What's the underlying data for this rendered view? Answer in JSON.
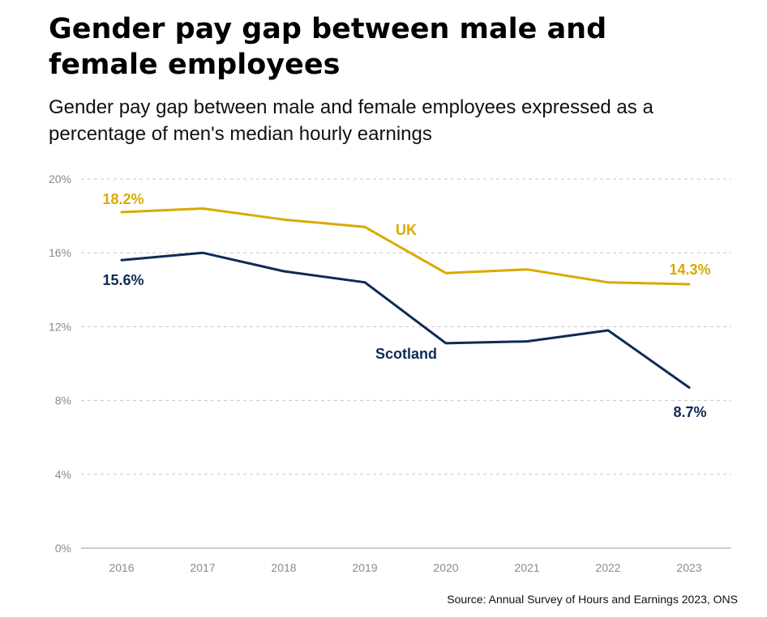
{
  "title": "Gender pay gap between male and female employees",
  "subtitle": "Gender pay gap between male and female employees expressed as a percentage of men's median hourly earnings",
  "source": "Source: Annual Survey of Hours and Earnings 2023, ONS",
  "colors": {
    "uk": "#d9aa00",
    "scotland": "#0d2b54",
    "grid": "#c8c8c8",
    "axis": "#9a9a9a"
  },
  "chart_data": {
    "type": "line",
    "x": [
      "2016",
      "2017",
      "2018",
      "2019",
      "2020",
      "2021",
      "2022",
      "2023"
    ],
    "ylim": [
      0,
      20
    ],
    "yticks": [
      "0%",
      "4%",
      "8%",
      "12%",
      "16%",
      "20%"
    ],
    "grid": true,
    "series": [
      {
        "name": "UK",
        "values": [
          18.2,
          18.4,
          17.8,
          17.4,
          14.9,
          15.1,
          14.4,
          14.3
        ]
      },
      {
        "name": "Scotland",
        "values": [
          15.6,
          16.0,
          15.0,
          14.4,
          11.1,
          11.2,
          11.8,
          8.7
        ]
      }
    ],
    "annotations": [
      {
        "text": "18.2%",
        "series": "UK"
      },
      {
        "text": "14.3%",
        "series": "UK"
      },
      {
        "text": "UK",
        "series": "UK"
      },
      {
        "text": "15.6%",
        "series": "Scotland"
      },
      {
        "text": "8.7%",
        "series": "Scotland"
      },
      {
        "text": "Scotland",
        "series": "Scotland"
      }
    ]
  }
}
